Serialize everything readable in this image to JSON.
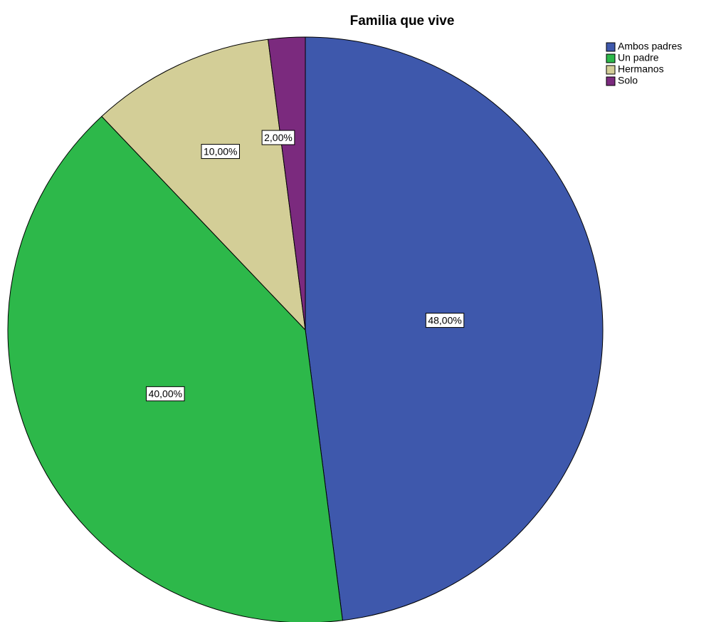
{
  "chart_data": {
    "type": "pie",
    "title": "Familia que vive",
    "categories": [
      "Ambos padres",
      "Un padre",
      "Hermanos",
      "Solo"
    ],
    "values": [
      48,
      40,
      10,
      2
    ],
    "value_labels": [
      "48,00%",
      "40,00%",
      "10,00%",
      "2,00%"
    ],
    "colors": [
      "#3e58ac",
      "#2db84a",
      "#d3ce97",
      "#7b2a7e"
    ],
    "legend": "top-right"
  }
}
